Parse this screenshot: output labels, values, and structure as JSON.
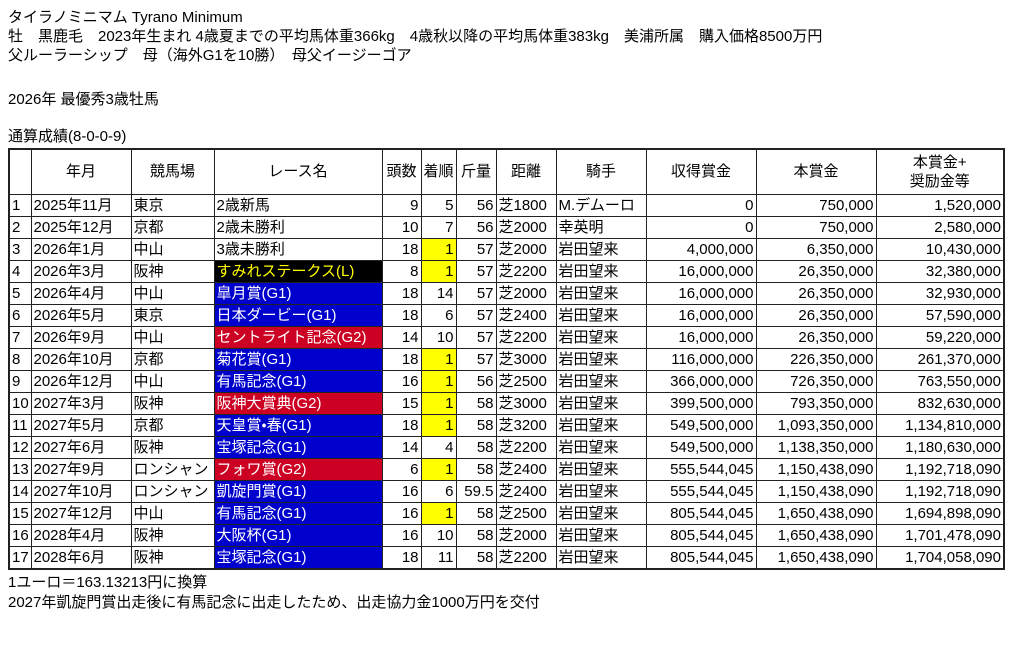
{
  "header": {
    "title": "タイラノミニマム Tyrano Minimum",
    "profile": "牡　黒鹿毛　2023年生まれ 4歳夏までの平均馬体重366kg　4歳秋以降の平均馬体重383kg　美浦所属　購入価格8500万円",
    "pedigree": "父ルーラーシップ　母（海外G1を10勝）　母父イージーゴア",
    "award": "2026年 最優秀3歳牡馬",
    "record": "通算成績(8-0-0-9)"
  },
  "table": {
    "columns": [
      {
        "key": "no",
        "label": ""
      },
      {
        "key": "date",
        "label": "年月"
      },
      {
        "key": "track",
        "label": "競馬場"
      },
      {
        "key": "race",
        "label": "レース名"
      },
      {
        "key": "heads",
        "label": "頭数"
      },
      {
        "key": "pos",
        "label": "着順"
      },
      {
        "key": "weight",
        "label": "斤量"
      },
      {
        "key": "dist",
        "label": "距離"
      },
      {
        "key": "jockey",
        "label": "騎手"
      },
      {
        "key": "earned",
        "label": "収得賞金"
      },
      {
        "key": "prize",
        "label": "本賞金"
      },
      {
        "key": "total",
        "label": "本賞金+\n奨励金等"
      }
    ],
    "rows": [
      {
        "no": "1",
        "date": "2025年11月",
        "track": "東京",
        "race": "2歳新馬",
        "race_class": "none",
        "heads": "9",
        "pos": "5",
        "win": false,
        "weight": "56",
        "dist": "芝1800",
        "jockey": "M.デムーロ",
        "earned": "0",
        "prize": "750,000",
        "total": "1,520,000"
      },
      {
        "no": "2",
        "date": "2025年12月",
        "track": "京都",
        "race": "2歳未勝利",
        "race_class": "none",
        "heads": "10",
        "pos": "7",
        "win": false,
        "weight": "56",
        "dist": "芝2000",
        "jockey": "幸英明",
        "earned": "0",
        "prize": "750,000",
        "total": "2,580,000"
      },
      {
        "no": "3",
        "date": "2026年1月",
        "track": "中山",
        "race": "3歳未勝利",
        "race_class": "none",
        "heads": "18",
        "pos": "1",
        "win": true,
        "weight": "57",
        "dist": "芝2000",
        "jockey": "岩田望来",
        "earned": "4,000,000",
        "prize": "6,350,000",
        "total": "10,430,000"
      },
      {
        "no": "4",
        "date": "2026年3月",
        "track": "阪神",
        "race": "すみれステークス(L)",
        "race_class": "listed",
        "heads": "8",
        "pos": "1",
        "win": true,
        "weight": "57",
        "dist": "芝2200",
        "jockey": "岩田望来",
        "earned": "16,000,000",
        "prize": "26,350,000",
        "total": "32,380,000"
      },
      {
        "no": "5",
        "date": "2026年4月",
        "track": "中山",
        "race": "皐月賞(G1)",
        "race_class": "g1",
        "heads": "18",
        "pos": "14",
        "win": false,
        "weight": "57",
        "dist": "芝2000",
        "jockey": "岩田望来",
        "earned": "16,000,000",
        "prize": "26,350,000",
        "total": "32,930,000"
      },
      {
        "no": "6",
        "date": "2026年5月",
        "track": "東京",
        "race": "日本ダービー(G1)",
        "race_class": "g1",
        "heads": "18",
        "pos": "6",
        "win": false,
        "weight": "57",
        "dist": "芝2400",
        "jockey": "岩田望来",
        "earned": "16,000,000",
        "prize": "26,350,000",
        "total": "57,590,000"
      },
      {
        "no": "7",
        "date": "2026年9月",
        "track": "中山",
        "race": "セントライト記念(G2)",
        "race_class": "g2",
        "heads": "14",
        "pos": "10",
        "win": false,
        "weight": "57",
        "dist": "芝2200",
        "jockey": "岩田望来",
        "earned": "16,000,000",
        "prize": "26,350,000",
        "total": "59,220,000"
      },
      {
        "no": "8",
        "date": "2026年10月",
        "track": "京都",
        "race": "菊花賞(G1)",
        "race_class": "g1",
        "heads": "18",
        "pos": "1",
        "win": true,
        "weight": "57",
        "dist": "芝3000",
        "jockey": "岩田望来",
        "earned": "116,000,000",
        "prize": "226,350,000",
        "total": "261,370,000"
      },
      {
        "no": "9",
        "date": "2026年12月",
        "track": "中山",
        "race": "有馬記念(G1)",
        "race_class": "g1",
        "heads": "16",
        "pos": "1",
        "win": true,
        "weight": "56",
        "dist": "芝2500",
        "jockey": "岩田望来",
        "earned": "366,000,000",
        "prize": "726,350,000",
        "total": "763,550,000"
      },
      {
        "no": "10",
        "date": "2027年3月",
        "track": "阪神",
        "race": "阪神大賞典(G2)",
        "race_class": "g2",
        "heads": "15",
        "pos": "1",
        "win": true,
        "weight": "58",
        "dist": "芝3000",
        "jockey": "岩田望来",
        "earned": "399,500,000",
        "prize": "793,350,000",
        "total": "832,630,000"
      },
      {
        "no": "11",
        "date": "2027年5月",
        "track": "京都",
        "race": "天皇賞・春(G1)",
        "race_class": "g1",
        "heads": "18",
        "pos": "1",
        "win": true,
        "weight": "58",
        "dist": "芝3200",
        "jockey": "岩田望来",
        "earned": "549,500,000",
        "prize": "1,093,350,000",
        "total": "1,134,810,000"
      },
      {
        "no": "12",
        "date": "2027年6月",
        "track": "阪神",
        "race": "宝塚記念(G1)",
        "race_class": "g1",
        "heads": "14",
        "pos": "4",
        "win": false,
        "weight": "58",
        "dist": "芝2200",
        "jockey": "岩田望来",
        "earned": "549,500,000",
        "prize": "1,138,350,000",
        "total": "1,180,630,000"
      },
      {
        "no": "13",
        "date": "2027年9月",
        "track": "ロンシャン",
        "race": "フォワ賞(G2)",
        "race_class": "g2",
        "heads": "6",
        "pos": "1",
        "win": true,
        "weight": "58",
        "dist": "芝2400",
        "jockey": "岩田望来",
        "earned": "555,544,045",
        "prize": "1,150,438,090",
        "total": "1,192,718,090"
      },
      {
        "no": "14",
        "date": "2027年10月",
        "track": "ロンシャン",
        "race": "凱旋門賞(G1)",
        "race_class": "g1",
        "heads": "16",
        "pos": "6",
        "win": false,
        "weight": "59.5",
        "dist": "芝2400",
        "jockey": "岩田望来",
        "earned": "555,544,045",
        "prize": "1,150,438,090",
        "total": "1,192,718,090"
      },
      {
        "no": "15",
        "date": "2027年12月",
        "track": "中山",
        "race": "有馬記念(G1)",
        "race_class": "g1",
        "heads": "16",
        "pos": "1",
        "win": true,
        "weight": "58",
        "dist": "芝2500",
        "jockey": "岩田望来",
        "earned": "805,544,045",
        "prize": "1,650,438,090",
        "total": "1,694,898,090"
      },
      {
        "no": "16",
        "date": "2028年4月",
        "track": "阪神",
        "race": "大阪杯(G1)",
        "race_class": "g1",
        "heads": "16",
        "pos": "10",
        "win": false,
        "weight": "58",
        "dist": "芝2000",
        "jockey": "岩田望来",
        "earned": "805,544,045",
        "prize": "1,650,438,090",
        "total": "1,701,478,090"
      },
      {
        "no": "17",
        "date": "2028年6月",
        "track": "阪神",
        "race": "宝塚記念(G1)",
        "race_class": "g1",
        "heads": "18",
        "pos": "11",
        "win": false,
        "weight": "58",
        "dist": "芝2200",
        "jockey": "岩田望来",
        "earned": "805,544,045",
        "prize": "1,650,438,090",
        "total": "1,704,058,090"
      }
    ]
  },
  "footer": {
    "note1": "1ユーロ＝163.13213円に換算",
    "note2": "2027年凱旋門賞出走後に有馬記念に出走したため、出走協力金1000万円を交付"
  },
  "colors": {
    "g1-blue": "#0000cc",
    "g2-red": "#cc0022",
    "listed-black": "#000000",
    "listed-yellow": "#ffff00",
    "win-yellow": "#ffff00",
    "border": "#222222"
  }
}
